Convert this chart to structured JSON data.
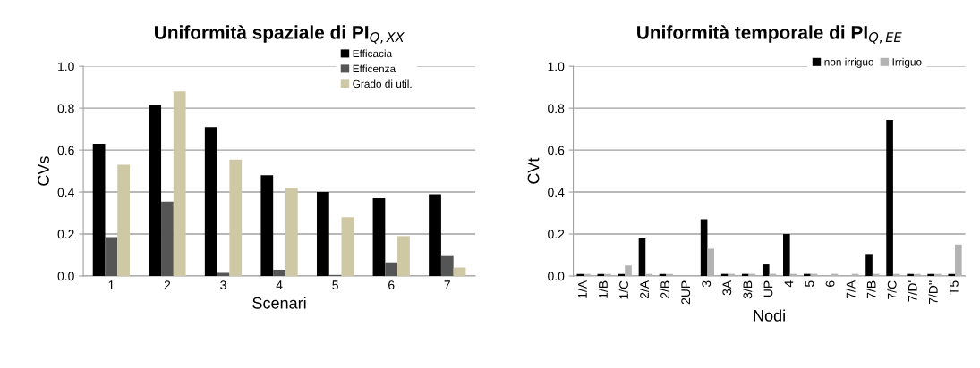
{
  "chart_data": [
    {
      "type": "bar",
      "title": "Uniformità spaziale di PI$_{Q,XX}$",
      "xlabel": "Scenari",
      "ylabel": "CVs",
      "categories": [
        "1",
        "2",
        "3",
        "4",
        "5",
        "6",
        "7"
      ],
      "series": [
        {
          "name": "Efficacia",
          "color": "#000000",
          "values": [
            0.63,
            0.815,
            0.71,
            0.48,
            0.4,
            0.37,
            0.39
          ]
        },
        {
          "name": "Efficenza",
          "color": "#555555",
          "values": [
            0.185,
            0.355,
            0.015,
            0.03,
            0.005,
            0.065,
            0.095
          ]
        },
        {
          "name": "Grado di util.",
          "color": "#cfc8a5",
          "values": [
            0.53,
            0.88,
            0.555,
            0.42,
            0.28,
            0.19,
            0.04
          ]
        }
      ],
      "ylim": [
        0,
        1.0
      ],
      "yticks": [
        {
          "value": 0,
          "label": "0.0"
        },
        {
          "value": 0.2,
          "label": "0.2"
        },
        {
          "value": 0.4,
          "label": "0.4"
        },
        {
          "value": 0.6,
          "label": "0.6"
        },
        {
          "value": 0.8,
          "label": "0.8"
        },
        {
          "value": 1.0,
          "label": "1.0"
        }
      ],
      "grid": "y",
      "legend": "top right"
    },
    {
      "type": "bar",
      "title": "Uniformità temporale di PI$_{Q,EE}$",
      "xlabel": "Nodi",
      "ylabel": "CVt",
      "categories": [
        "1/A",
        "1/B",
        "1/C",
        "2/A",
        "2/B",
        "2UP",
        "3",
        "3A",
        "3/B",
        "UP",
        "4",
        "5",
        "6",
        "7/A",
        "7/B",
        "7/C",
        "7/D'",
        "7/D''",
        "T5"
      ],
      "series": [
        {
          "name": "non irriguo",
          "color": "#000000",
          "values": [
            0.01,
            0.01,
            0.01,
            0.18,
            0.01,
            0,
            0.27,
            0.01,
            0.01,
            0.055,
            0.2,
            0.01,
            0,
            0,
            0.105,
            0.745,
            0.01,
            0.01,
            0.01
          ]
        },
        {
          "name": "Irriguo",
          "color": "#b3b3b3",
          "values": [
            0.01,
            0.01,
            0.05,
            0.01,
            0.01,
            0,
            0.13,
            0.01,
            0.01,
            0.01,
            0.01,
            0.01,
            0.01,
            0.01,
            0.01,
            0.01,
            0.01,
            0.01,
            0.15
          ]
        }
      ],
      "ylim": [
        0,
        1.0
      ],
      "yticks": [
        {
          "value": 0,
          "label": "0.0"
        },
        {
          "value": 0.2,
          "label": "0.2"
        },
        {
          "value": 0.4,
          "label": "0.4"
        },
        {
          "value": 0.6,
          "label": "0.6"
        },
        {
          "value": 0.8,
          "label": "0.8"
        },
        {
          "value": 1.0,
          "label": "1.0"
        }
      ],
      "grid": "y",
      "legend": "top right"
    }
  ]
}
